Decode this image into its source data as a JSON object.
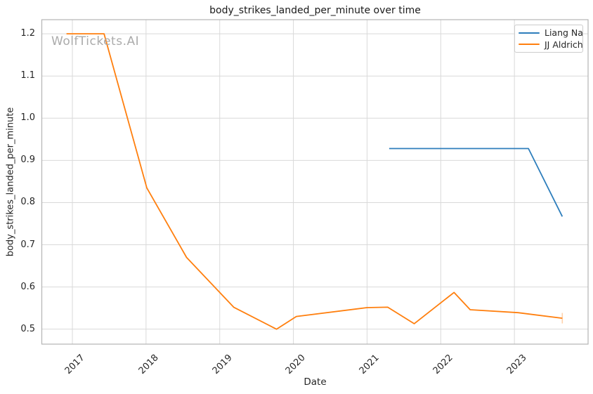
{
  "chart_data": {
    "type": "line",
    "title": "body_strikes_landed_per_minute over time",
    "xlabel": "Date",
    "ylabel": "body_strikes_landed_per_minute",
    "watermark": "WolfTickets.AI",
    "grid": true,
    "legend_position": "upper right",
    "x_ticks": [
      2017,
      2018,
      2019,
      2020,
      2021,
      2022,
      2023
    ],
    "y_ticks": [
      0.5,
      0.6,
      0.7,
      0.8,
      0.9,
      1.0,
      1.1,
      1.2
    ],
    "xlim": [
      2016.585,
      2024.0
    ],
    "ylim": [
      0.4645,
      1.2335
    ],
    "colors": {
      "grid": "#d9d9d9",
      "spine": "#b3b3b3",
      "text": "#262626",
      "watermark": "#ababab"
    },
    "series": [
      {
        "name": "Liang Na",
        "color": "#2e7ebc",
        "x": [
          2021.3,
          2023.19,
          2023.65
        ],
        "y": [
          0.928,
          0.928,
          0.767
        ]
      },
      {
        "name": "JJ Aldrich",
        "color": "#ff7f0e",
        "end_cap": true,
        "x": [
          2016.92,
          2017.43,
          2018.01,
          2018.55,
          2019.19,
          2019.77,
          2020.04,
          2021.0,
          2021.28,
          2021.64,
          2022.18,
          2022.4,
          2023.05,
          2023.65
        ],
        "y": [
          1.2,
          1.2,
          0.835,
          0.67,
          0.552,
          0.5,
          0.53,
          0.551,
          0.552,
          0.513,
          0.587,
          0.546,
          0.539,
          0.526
        ]
      }
    ]
  }
}
